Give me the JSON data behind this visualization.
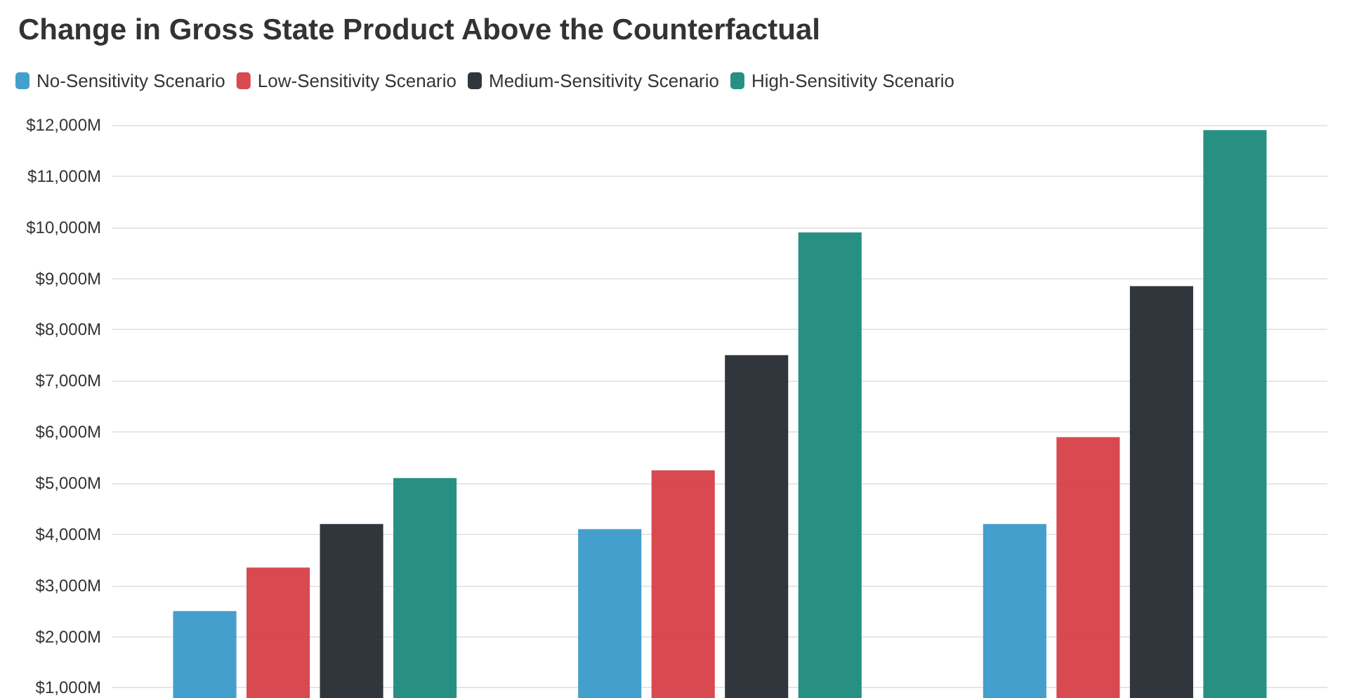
{
  "chart_data": {
    "type": "bar",
    "title": "Change in Gross State Product Above the Counterfactual",
    "categories": [
      null,
      null,
      null
    ],
    "series": [
      {
        "name": "No-Sensitivity Scenario",
        "color": "#3a9ac9",
        "values": [
          2500,
          4100,
          4200
        ]
      },
      {
        "name": "Low-Sensitivity Scenario",
        "color": "#d63f47",
        "values": [
          3350,
          5250,
          5900
        ]
      },
      {
        "name": "Medium-Sensitivity Scenario",
        "color": "#262b31",
        "values": [
          4200,
          7500,
          8850
        ]
      },
      {
        "name": "High-Sensitivity Scenario",
        "color": "#1b8a7c",
        "values": [
          5100,
          9900,
          11900
        ]
      }
    ],
    "ylim": [
      800,
      12000
    ],
    "yticks": [
      {
        "value": 1000,
        "label": "$1,000M"
      },
      {
        "value": 2000,
        "label": "$2,000M"
      },
      {
        "value": 3000,
        "label": "$3,000M"
      },
      {
        "value": 4000,
        "label": "$4,000M"
      },
      {
        "value": 5000,
        "label": "$5,000M"
      },
      {
        "value": 6000,
        "label": "$6,000M"
      },
      {
        "value": 7000,
        "label": "$7,000M"
      },
      {
        "value": 8000,
        "label": "$8,000M"
      },
      {
        "value": 9000,
        "label": "$9,000M"
      },
      {
        "value": 10000,
        "label": "$10,000M"
      },
      {
        "value": 11000,
        "label": "$11,000M"
      },
      {
        "value": 12000,
        "label": "$12,000M"
      }
    ],
    "grid": "y",
    "legend": "top left",
    "tick_labels": "y"
  }
}
